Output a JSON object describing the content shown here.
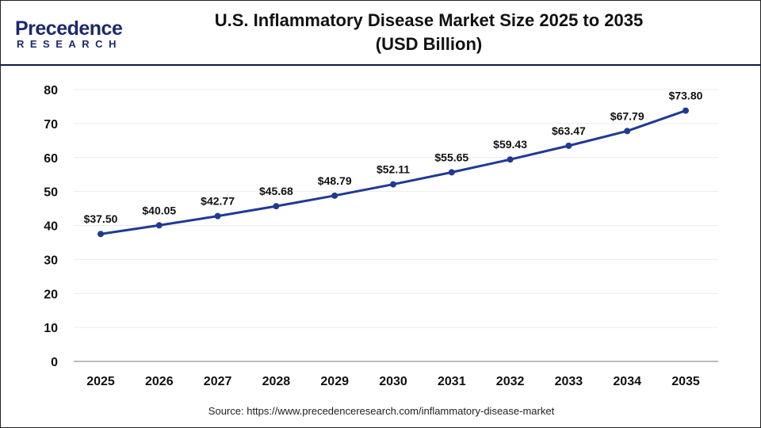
{
  "logo": {
    "line1": "Precedence",
    "line2": "RESEARCH"
  },
  "header": {
    "title_line1": "U.S. Inflammatory Disease Market Size 2025 to 2035",
    "title_line2": "(USD Billion)"
  },
  "source": "Source: https://www.precedenceresearch.com/inflammatory-disease-market",
  "chart_data": {
    "type": "line",
    "title": "U.S. Inflammatory Disease Market Size 2025 to 2035 (USD Billion)",
    "categories": [
      "2025",
      "2026",
      "2027",
      "2028",
      "2029",
      "2030",
      "2031",
      "2032",
      "2033",
      "2034",
      "2035"
    ],
    "values": [
      37.5,
      40.05,
      42.77,
      45.68,
      48.79,
      52.11,
      55.65,
      59.43,
      63.47,
      67.79,
      73.8
    ],
    "data_labels": [
      "$37.50",
      "$40.05",
      "$42.77",
      "$45.68",
      "$48.79",
      "$52.11",
      "$55.65",
      "$59.43",
      "$63.47",
      "$67.79",
      "$73.80"
    ],
    "yticks": [
      0,
      10,
      20,
      30,
      40,
      50,
      60,
      70,
      80
    ],
    "ylim": [
      0,
      80
    ],
    "grid": true,
    "line_color": "#1f3a93"
  }
}
